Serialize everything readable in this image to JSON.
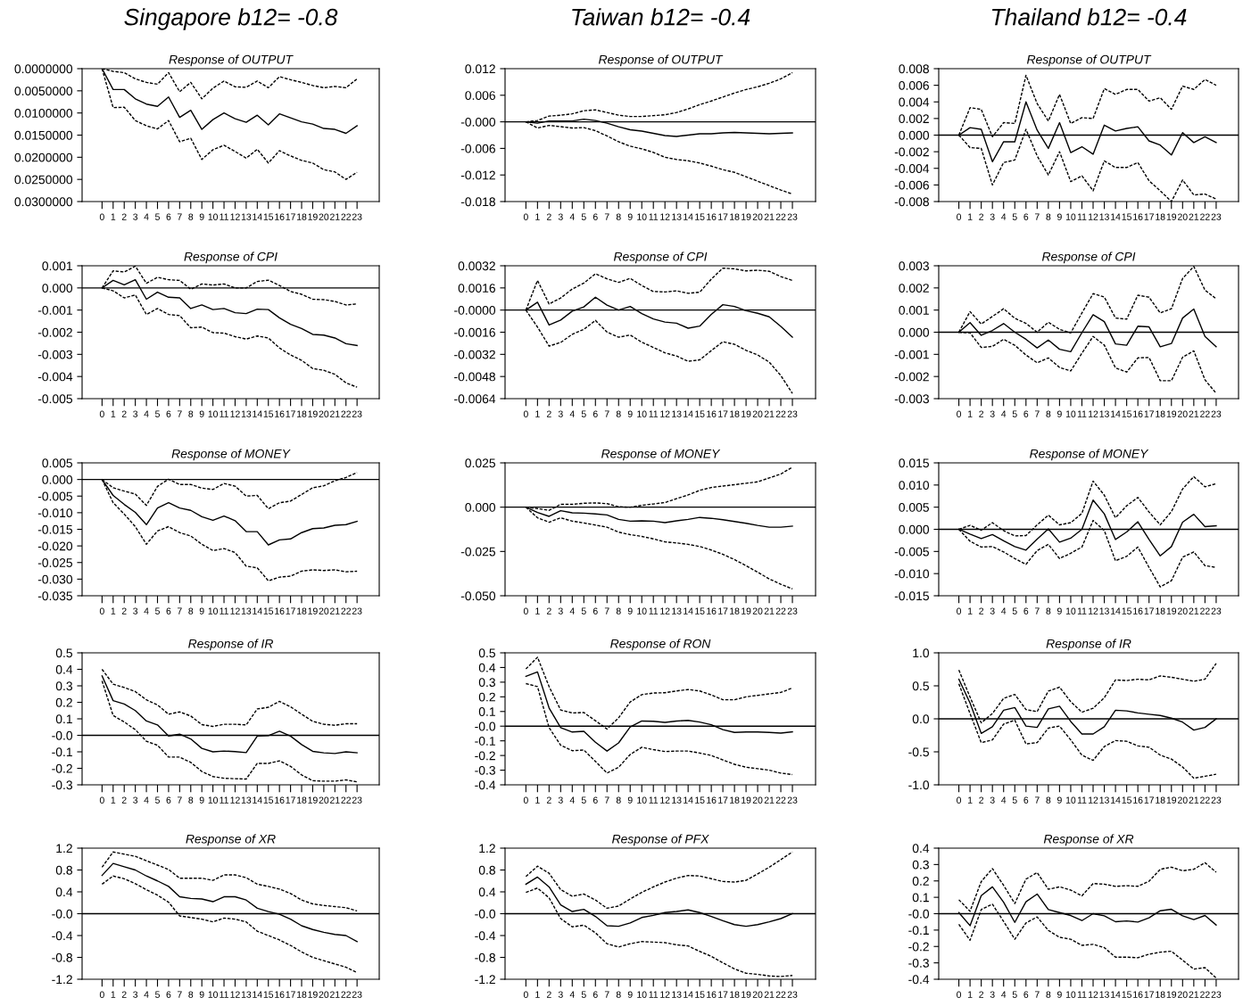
{
  "chart_data": [
    {
      "type": "line",
      "title": "Singapore b12= -0.8",
      "subtitle": "Response of OUTPUT",
      "categories": [
        "0",
        "1",
        "2",
        "3",
        "4",
        "5",
        "6",
        "7",
        "8",
        "9",
        "10",
        "11",
        "12",
        "13",
        "14",
        "15",
        "16",
        "17",
        "18",
        "19",
        "20",
        "21",
        "22",
        "23"
      ],
      "ylim": [
        0.03,
        0.0
      ],
      "yticks": [
        {
          "value": 0.0,
          "label": "0.0000000"
        },
        {
          "value": 0.005,
          "label": "0.0050000"
        },
        {
          "value": 0.01,
          "label": "0.0100000"
        },
        {
          "value": 0.015,
          "label": "0.0150000"
        },
        {
          "value": 0.02,
          "label": "0.0200000"
        },
        {
          "value": 0.025,
          "label": "0.0250000"
        },
        {
          "value": 0.03,
          "label": "0.0300000"
        }
      ],
      "series": [
        {
          "color": "#000000",
          "line_style": "solid",
          "values": [
            0,
            0.0047,
            0.0047,
            0.0068,
            0.008,
            0.0085,
            0.0064,
            0.011,
            0.0094,
            0.0137,
            0.0115,
            0.01,
            0.0113,
            0.0121,
            0.0105,
            0.0127,
            0.0102,
            0.0111,
            0.012,
            0.0125,
            0.0135,
            0.0137,
            0.0146,
            0.0129
          ]
        },
        {
          "color": "#000000",
          "line_style": "dashed",
          "values": [
            0,
            0.0006,
            0.0009,
            0.0023,
            0.0031,
            0.0035,
            0.0009,
            0.0052,
            0.0031,
            0.0068,
            0.0044,
            0.0028,
            0.0041,
            0.0042,
            0.0028,
            0.0043,
            0.0018,
            0.0025,
            0.0031,
            0.0038,
            0.0043,
            0.004,
            0.0043,
            0.0023
          ]
        },
        {
          "color": "#000000",
          "line_style": "dashed",
          "values": [
            0,
            0.0088,
            0.0087,
            0.0117,
            0.0129,
            0.0136,
            0.0117,
            0.0165,
            0.0157,
            0.0205,
            0.0183,
            0.0173,
            0.0187,
            0.0202,
            0.0182,
            0.0213,
            0.0185,
            0.0197,
            0.0207,
            0.0213,
            0.0228,
            0.0233,
            0.025,
            0.0234
          ]
        }
      ]
    },
    {
      "type": "line",
      "title": "Taiwan b12= -0.4",
      "subtitle": "Response of OUTPUT",
      "categories": [
        "0",
        "1",
        "2",
        "3",
        "4",
        "5",
        "6",
        "7",
        "8",
        "9",
        "10",
        "11",
        "12",
        "13",
        "14",
        "15",
        "16",
        "17",
        "18",
        "19",
        "20",
        "21",
        "22",
        "23"
      ],
      "ylim": [
        -0.018,
        0.012
      ],
      "yticks": [
        -0.018,
        -0.012,
        -0.006,
        {
          "value": 0.0,
          "label": "-0.000"
        },
        0.006,
        0.012
      ],
      "ref_lines": [
        {
          "axis": "y",
          "value": 0,
          "color": "#000000"
        }
      ],
      "series": [
        {
          "color": "#000000",
          "line_style": "solid",
          "values": [
            0,
            -0.0003,
            0.0002,
            0.0002,
            0.0002,
            0.0006,
            0.0003,
            -0.0003,
            -0.0011,
            -0.0018,
            -0.0021,
            -0.0026,
            -0.0031,
            -0.0033,
            -0.003,
            -0.0027,
            -0.0027,
            -0.0025,
            -0.0024,
            -0.0025,
            -0.0026,
            -0.0027,
            -0.0026,
            -0.0025
          ]
        },
        {
          "color": "#000000",
          "line_style": "dashed",
          "values": [
            0,
            0.0003,
            0.0013,
            0.0015,
            0.0018,
            0.0025,
            0.0027,
            0.0021,
            0.0015,
            0.0012,
            0.0012,
            0.0014,
            0.0016,
            0.0021,
            0.0029,
            0.0039,
            0.0047,
            0.0056,
            0.0065,
            0.0073,
            0.0079,
            0.0087,
            0.0097,
            0.0111
          ]
        },
        {
          "color": "#000000",
          "line_style": "dashed",
          "values": [
            0,
            -0.0014,
            -0.0008,
            -0.0011,
            -0.0014,
            -0.0013,
            -0.002,
            -0.0032,
            -0.0045,
            -0.0055,
            -0.0061,
            -0.0069,
            -0.008,
            -0.0085,
            -0.0088,
            -0.0093,
            -0.01,
            -0.0108,
            -0.0114,
            -0.0124,
            -0.0134,
            -0.0144,
            -0.0154,
            -0.0163
          ]
        }
      ]
    },
    {
      "type": "line",
      "title": "Thailand b12= -0.4",
      "subtitle": "Response of OUTPUT",
      "categories": [
        "0",
        "1",
        "2",
        "3",
        "4",
        "5",
        "6",
        "7",
        "8",
        "9",
        "10",
        "11",
        "12",
        "13",
        "14",
        "15",
        "16",
        "17",
        "18",
        "19",
        "20",
        "21",
        "22",
        "23"
      ],
      "ylim": [
        -0.008,
        0.008
      ],
      "yticks": [
        -0.008,
        -0.006,
        -0.004,
        -0.002,
        {
          "value": 0.0,
          "label": "0.000"
        },
        0.002,
        0.004,
        0.006,
        0.008
      ],
      "ref_lines": [
        {
          "axis": "y",
          "value": 0,
          "color": "#000000"
        }
      ],
      "series": [
        {
          "color": "#000000",
          "line_style": "solid",
          "values": [
            0,
            0.0009,
            0.0007,
            -0.0032,
            -0.0008,
            -0.0008,
            0.004,
            0.0006,
            -0.0016,
            0.0015,
            -0.0021,
            -0.0014,
            -0.0023,
            0.0012,
            0.0005,
            0.0008,
            0.001,
            -0.0007,
            -0.0012,
            -0.0024,
            0.0003,
            -0.0009,
            -0.0002,
            -0.0009
          ]
        },
        {
          "color": "#000000",
          "line_style": "dashed",
          "values": [
            0,
            0.0033,
            0.0031,
            -0.0002,
            0.0015,
            0.0014,
            0.0072,
            0.0038,
            0.0017,
            0.0049,
            0.0014,
            0.0021,
            0.002,
            0.0056,
            0.0049,
            0.0055,
            0.0055,
            0.0041,
            0.0045,
            0.0031,
            0.0059,
            0.0055,
            0.0067,
            0.006
          ]
        },
        {
          "color": "#000000",
          "line_style": "dashed",
          "values": [
            0,
            -0.0015,
            -0.0016,
            -0.006,
            -0.0033,
            -0.003,
            0.0007,
            -0.0025,
            -0.0048,
            -0.002,
            -0.0056,
            -0.0049,
            -0.0067,
            -0.0031,
            -0.0039,
            -0.0039,
            -0.0033,
            -0.0055,
            -0.0067,
            -0.008,
            -0.0054,
            -0.0072,
            -0.0071,
            -0.0077
          ]
        }
      ]
    },
    {
      "type": "line",
      "title": "Response of CPI",
      "categories": [
        "0",
        "1",
        "2",
        "3",
        "4",
        "5",
        "6",
        "7",
        "8",
        "9",
        "10",
        "11",
        "12",
        "13",
        "14",
        "15",
        "16",
        "17",
        "18",
        "19",
        "20",
        "21",
        "22",
        "23"
      ],
      "ylim": [
        -0.005,
        0.001
      ],
      "yticks": [
        -0.005,
        -0.004,
        -0.003,
        -0.002,
        -0.001,
        {
          "value": 0.0,
          "label": "0.000"
        },
        0.001
      ],
      "ref_lines": [
        {
          "axis": "y",
          "value": 0,
          "color": "#000000"
        }
      ],
      "series": [
        {
          "color": "#000000",
          "line_style": "solid",
          "values": [
            0,
            0.00034,
            0.00014,
            0.00037,
            -0.00051,
            -0.00019,
            -0.00042,
            -0.00045,
            -0.00093,
            -0.00077,
            -0.00098,
            -0.00093,
            -0.00112,
            -0.00116,
            -0.00096,
            -0.00098,
            -0.00135,
            -0.00164,
            -0.00183,
            -0.0021,
            -0.00213,
            -0.00226,
            -0.00252,
            -0.0026
          ]
        },
        {
          "color": "#000000",
          "line_style": "dashed",
          "values": [
            0,
            0.00077,
            0.00072,
            0.00098,
            0.00021,
            0.00048,
            0.00037,
            0.00034,
            -6e-05,
            0.00018,
            0.00013,
            0.00018,
            0,
            0,
            0.00029,
            0.00035,
            0.00011,
            -0.00016,
            -0.00029,
            -0.00051,
            -0.00053,
            -0.00061,
            -0.00077,
            -0.00072
          ]
        },
        {
          "color": "#000000",
          "line_style": "dashed",
          "values": [
            0,
            -0.00013,
            -0.00045,
            -0.00032,
            -0.0012,
            -0.00093,
            -0.0012,
            -0.00125,
            -0.0018,
            -0.00177,
            -0.00202,
            -0.00204,
            -0.0022,
            -0.00231,
            -0.00217,
            -0.00226,
            -0.00271,
            -0.00303,
            -0.00327,
            -0.00364,
            -0.00372,
            -0.0039,
            -0.00429,
            -0.00448
          ]
        }
      ]
    },
    {
      "type": "line",
      "title": "Response of CPI",
      "categories": [
        "0",
        "1",
        "2",
        "3",
        "4",
        "5",
        "6",
        "7",
        "8",
        "9",
        "10",
        "11",
        "12",
        "13",
        "14",
        "15",
        "16",
        "17",
        "18",
        "19",
        "20",
        "21",
        "22",
        "23"
      ],
      "ylim": [
        -0.0064,
        0.0032
      ],
      "yticks": [
        -0.0064,
        -0.0048,
        -0.0032,
        -0.0016,
        {
          "value": 0.0,
          "label": "-0.0000"
        },
        0.0016,
        0.0032
      ],
      "ref_lines": [
        {
          "axis": "y",
          "value": 0,
          "color": "#000000"
        }
      ],
      "series": [
        {
          "color": "#000000",
          "line_style": "solid",
          "values": [
            0,
            0.00057,
            -0.00108,
            -0.00072,
            -8e-05,
            0.00023,
            0.00093,
            0.00036,
            0,
            0.00026,
            -0.00026,
            -0.00064,
            -0.00087,
            -0.00095,
            -0.00131,
            -0.00116,
            -0.00031,
            0.00039,
            0.00026,
            -5e-05,
            -0.00023,
            -0.00049,
            -0.00118,
            -0.00196
          ]
        },
        {
          "color": "#000000",
          "line_style": "dashed",
          "values": [
            0,
            0.00214,
            0.00044,
            0.00087,
            0.00152,
            0.00195,
            0.00262,
            0.00226,
            0.002,
            0.00229,
            0.00177,
            0.00134,
            0.00131,
            0.00139,
            0.00121,
            0.00129,
            0.00224,
            0.00303,
            0.00298,
            0.00283,
            0.00288,
            0.0028,
            0.00242,
            0.00214
          ]
        },
        {
          "color": "#000000",
          "line_style": "dashed",
          "values": [
            0,
            -0.00123,
            -0.0026,
            -0.00234,
            -0.00175,
            -0.00139,
            -0.00075,
            -0.00159,
            -0.00196,
            -0.0018,
            -0.00232,
            -0.0027,
            -0.00309,
            -0.00332,
            -0.0037,
            -0.0036,
            -0.00293,
            -0.00229,
            -0.00247,
            -0.00291,
            -0.00324,
            -0.00376,
            -0.00473,
            -0.00602
          ]
        }
      ]
    },
    {
      "type": "line",
      "title": "Response of CPI",
      "categories": [
        "0",
        "1",
        "2",
        "3",
        "4",
        "5",
        "6",
        "7",
        "8",
        "9",
        "10",
        "11",
        "12",
        "13",
        "14",
        "15",
        "16",
        "17",
        "18",
        "19",
        "20",
        "21",
        "22",
        "23"
      ],
      "ylim": [
        -0.003,
        0.003
      ],
      "yticks": [
        -0.003,
        -0.002,
        -0.001,
        {
          "value": 0.0,
          "label": "0.000"
        },
        0.001,
        0.002,
        0.003
      ],
      "ref_lines": [
        {
          "axis": "y",
          "value": 0,
          "color": "#000000"
        }
      ],
      "series": [
        {
          "color": "#000000",
          "line_style": "solid",
          "values": [
            0,
            0.00043,
            -0.00014,
            8e-05,
            0.00039,
            0,
            -0.00032,
            -0.00071,
            -0.00035,
            -0.00077,
            -0.00088,
            -2e-05,
            0.00079,
            0.00048,
            -0.00053,
            -0.00059,
            0.00027,
            0.00024,
            -0.00066,
            -0.00051,
            0.00064,
            0.00105,
            -0.00019,
            -0.00066
          ]
        },
        {
          "color": "#000000",
          "line_style": "dashed",
          "values": [
            0,
            0.00093,
            0.00037,
            0.00071,
            0.00106,
            0.00063,
            0.0004,
            0,
            0.00045,
            0.00013,
            -3e-05,
            0.00087,
            0.00174,
            0.00159,
            0.00064,
            0.00059,
            0.00167,
            0.00158,
            0.00087,
            0.00106,
            0.00243,
            0.00297,
            0.0019,
            0.00151
          ]
        },
        {
          "color": "#000000",
          "line_style": "dashed",
          "values": [
            0,
            -3e-05,
            -0.00069,
            -0.00064,
            -0.00032,
            -0.00059,
            -0.00103,
            -0.00138,
            -0.00116,
            -0.00159,
            -0.00175,
            -0.00095,
            -0.00019,
            -0.00058,
            -0.00161,
            -0.0018,
            -0.00116,
            -0.00114,
            -0.00219,
            -0.00219,
            -0.00113,
            -0.00084,
            -0.00215,
            -0.00276
          ]
        }
      ]
    },
    {
      "type": "line",
      "title": "Response of MONEY",
      "categories": [
        "0",
        "1",
        "2",
        "3",
        "4",
        "5",
        "6",
        "7",
        "8",
        "9",
        "10",
        "11",
        "12",
        "13",
        "14",
        "15",
        "16",
        "17",
        "18",
        "19",
        "20",
        "21",
        "22",
        "23"
      ],
      "ylim": [
        -0.035,
        0.005
      ],
      "yticks": [
        -0.035,
        {
          "value": -0.03,
          "label": "-0.030"
        },
        -0.025,
        {
          "value": -0.02,
          "label": "-0.020"
        },
        -0.015,
        {
          "value": -0.01,
          "label": "-0.010"
        },
        -0.005,
        {
          "value": 0.0,
          "label": "0.000"
        },
        0.005
      ],
      "ref_lines": [
        {
          "axis": "y",
          "value": 0,
          "color": "#000000"
        }
      ],
      "series": [
        {
          "color": "#000000",
          "line_style": "solid",
          "values": [
            0,
            -0.0048,
            -0.0075,
            -0.0099,
            -0.0136,
            -0.0086,
            -0.007,
            -0.0086,
            -0.0093,
            -0.0112,
            -0.0123,
            -0.011,
            -0.0124,
            -0.0157,
            -0.0157,
            -0.0197,
            -0.0182,
            -0.0179,
            -0.016,
            -0.0148,
            -0.0146,
            -0.0138,
            -0.0136,
            -0.0126
          ]
        },
        {
          "color": "#000000",
          "line_style": "dashed",
          "values": [
            0,
            -0.0025,
            -0.0035,
            -0.0044,
            -0.0078,
            -0.0021,
            0.0001,
            -0.0015,
            -0.0015,
            -0.0026,
            -0.003,
            -0.0012,
            -0.002,
            -0.005,
            -0.0048,
            -0.0088,
            -0.007,
            -0.0065,
            -0.0045,
            -0.0025,
            -0.0019,
            -0.0004,
            0.0006,
            0.0021
          ]
        },
        {
          "color": "#000000",
          "line_style": "dashed",
          "values": [
            0,
            -0.007,
            -0.0104,
            -0.0142,
            -0.0195,
            -0.0155,
            -0.0142,
            -0.016,
            -0.017,
            -0.0195,
            -0.0214,
            -0.0208,
            -0.022,
            -0.0261,
            -0.0266,
            -0.0305,
            -0.0294,
            -0.0291,
            -0.0276,
            -0.0272,
            -0.0274,
            -0.0272,
            -0.0278,
            -0.0276
          ]
        }
      ]
    },
    {
      "type": "line",
      "title": "Response of MONEY",
      "categories": [
        "0",
        "1",
        "2",
        "3",
        "4",
        "5",
        "6",
        "7",
        "8",
        "9",
        "10",
        "11",
        "12",
        "13",
        "14",
        "15",
        "16",
        "17",
        "18",
        "19",
        "20",
        "21",
        "22",
        "23"
      ],
      "ylim": [
        -0.05,
        0.025
      ],
      "yticks": [
        {
          "value": -0.05,
          "label": "-0.050"
        },
        -0.025,
        {
          "value": 0.0,
          "label": "0.000"
        },
        0.025
      ],
      "ref_lines": [
        {
          "axis": "y",
          "value": 0,
          "color": "#000000"
        }
      ],
      "series": [
        {
          "color": "#000000",
          "line_style": "solid",
          "values": [
            0,
            -0.003,
            -0.0052,
            -0.002,
            -0.0032,
            -0.0034,
            -0.0038,
            -0.0044,
            -0.0069,
            -0.0079,
            -0.0077,
            -0.0079,
            -0.0087,
            -0.0077,
            -0.0069,
            -0.0058,
            -0.0063,
            -0.0071,
            -0.0081,
            -0.0091,
            -0.0103,
            -0.0113,
            -0.0113,
            -0.0107
          ]
        },
        {
          "color": "#000000",
          "line_style": "dashed",
          "values": [
            0,
            -0.0008,
            -0.0018,
            0.0016,
            0.0016,
            0.0022,
            0.0024,
            0.002,
            0.0002,
            0,
            0.001,
            0.0018,
            0.0026,
            0.0048,
            0.0069,
            0.0095,
            0.0111,
            0.0119,
            0.0127,
            0.0135,
            0.0143,
            0.0165,
            0.0187,
            0.0226
          ]
        },
        {
          "color": "#000000",
          "line_style": "dashed",
          "values": [
            0,
            -0.006,
            -0.0085,
            -0.006,
            -0.0079,
            -0.0089,
            -0.0101,
            -0.0113,
            -0.0141,
            -0.0155,
            -0.0165,
            -0.0179,
            -0.0196,
            -0.0202,
            -0.021,
            -0.0222,
            -0.0242,
            -0.0266,
            -0.0296,
            -0.033,
            -0.0367,
            -0.0405,
            -0.0435,
            -0.0461
          ]
        }
      ]
    },
    {
      "type": "line",
      "title": "Response of MONEY",
      "categories": [
        "0",
        "1",
        "2",
        "3",
        "4",
        "5",
        "6",
        "7",
        "8",
        "9",
        "10",
        "11",
        "12",
        "13",
        "14",
        "15",
        "16",
        "17",
        "18",
        "19",
        "20",
        "21",
        "22",
        "23"
      ],
      "ylim": [
        -0.015,
        0.015
      ],
      "yticks": [
        -0.015,
        {
          "value": -0.01,
          "label": "-0.010"
        },
        -0.005,
        {
          "value": 0.0,
          "label": "0.000"
        },
        0.005,
        {
          "value": 0.01,
          "label": "0.010"
        },
        0.015
      ],
      "ref_lines": [
        {
          "axis": "y",
          "value": 0,
          "color": "#000000"
        }
      ],
      "series": [
        {
          "color": "#000000",
          "line_style": "solid",
          "values": [
            0,
            -0.0011,
            -0.0021,
            -0.0012,
            -0.0026,
            -0.0039,
            -0.0047,
            -0.0022,
            0.0001,
            -0.0029,
            -0.002,
            0,
            0.0066,
            0.0035,
            -0.0023,
            -0.0006,
            0.0017,
            -0.0023,
            -0.006,
            -0.0039,
            0.0016,
            0.0034,
            0.0006,
            0.0008
          ]
        },
        {
          "color": "#000000",
          "line_style": "dashed",
          "values": [
            0,
            0.0009,
            -0.0002,
            0.0015,
            -0.0003,
            -0.0015,
            -0.0014,
            0.001,
            0.0032,
            0.001,
            0.0015,
            0.0036,
            0.0109,
            0.0077,
            0.0026,
            0.0053,
            0.0072,
            0.0039,
            0.001,
            0.004,
            0.0091,
            0.0119,
            0.0096,
            0.0103
          ]
        },
        {
          "color": "#000000",
          "line_style": "dashed",
          "values": [
            0,
            -0.0027,
            -0.004,
            -0.0039,
            -0.0051,
            -0.0066,
            -0.0079,
            -0.0048,
            -0.0034,
            -0.0066,
            -0.0054,
            -0.004,
            0.002,
            -0.0003,
            -0.0071,
            -0.0061,
            -0.004,
            -0.0086,
            -0.013,
            -0.0116,
            -0.0063,
            -0.0051,
            -0.0082,
            -0.0086
          ]
        }
      ]
    },
    {
      "type": "line",
      "title": "Response of IR",
      "categories": [
        "0",
        "1",
        "2",
        "3",
        "4",
        "5",
        "6",
        "7",
        "8",
        "9",
        "10",
        "11",
        "12",
        "13",
        "14",
        "15",
        "16",
        "17",
        "18",
        "19",
        "20",
        "21",
        "22",
        "23"
      ],
      "ylim": [
        -0.3,
        0.5
      ],
      "yticks": [
        -0.3,
        -0.2,
        -0.1,
        {
          "value": 0.0,
          "label": "-0.0"
        },
        0.1,
        0.2,
        0.3,
        0.4,
        0.5
      ],
      "ref_lines": [
        {
          "axis": "y",
          "value": 0,
          "color": "#000000"
        }
      ],
      "series": [
        {
          "color": "#000000",
          "line_style": "solid",
          "values": [
            0.36,
            0.21,
            0.19,
            0.15,
            0.087,
            0.063,
            -0.004,
            0.007,
            -0.022,
            -0.079,
            -0.1,
            -0.095,
            -0.099,
            -0.105,
            -0.005,
            -0.002,
            0.025,
            -0.005,
            -0.056,
            -0.097,
            -0.106,
            -0.11,
            -0.1,
            -0.106
          ]
        },
        {
          "color": "#000000",
          "line_style": "dashed",
          "values": [
            0.4,
            0.31,
            0.29,
            0.265,
            0.215,
            0.184,
            0.128,
            0.142,
            0.117,
            0.065,
            0.054,
            0.067,
            0.067,
            0.063,
            0.16,
            0.17,
            0.206,
            0.173,
            0.128,
            0.085,
            0.067,
            0.061,
            0.07,
            0.07
          ]
        },
        {
          "color": "#000000",
          "line_style": "dashed",
          "values": [
            0.33,
            0.12,
            0.081,
            0.034,
            -0.036,
            -0.06,
            -0.132,
            -0.132,
            -0.164,
            -0.219,
            -0.25,
            -0.26,
            -0.263,
            -0.265,
            -0.17,
            -0.17,
            -0.155,
            -0.188,
            -0.24,
            -0.275,
            -0.278,
            -0.278,
            -0.27,
            -0.282
          ]
        }
      ]
    },
    {
      "type": "line",
      "title": "Response of RON",
      "categories": [
        "0",
        "1",
        "2",
        "3",
        "4",
        "5",
        "6",
        "7",
        "8",
        "9",
        "10",
        "11",
        "12",
        "13",
        "14",
        "15",
        "16",
        "17",
        "18",
        "19",
        "20",
        "21",
        "22",
        "23"
      ],
      "ylim": [
        -0.4,
        0.5
      ],
      "yticks": [
        -0.4,
        -0.3,
        -0.2,
        -0.1,
        {
          "value": 0.0,
          "label": "-0.0"
        },
        0.1,
        0.2,
        0.3,
        0.4,
        0.5
      ],
      "ref_lines": [
        {
          "axis": "y",
          "value": 0,
          "color": "#000000"
        }
      ],
      "series": [
        {
          "color": "#000000",
          "line_style": "solid",
          "values": [
            0.34,
            0.37,
            0.124,
            -0.01,
            -0.04,
            -0.035,
            -0.11,
            -0.17,
            -0.114,
            -0.006,
            0.035,
            0.033,
            0.026,
            0.035,
            0.039,
            0.028,
            0.01,
            -0.024,
            -0.043,
            -0.04,
            -0.04,
            -0.043,
            -0.047,
            -0.039
          ]
        },
        {
          "color": "#000000",
          "line_style": "dashed",
          "values": [
            0.39,
            0.47,
            0.27,
            0.11,
            0.09,
            0.093,
            0.037,
            -0.02,
            0.057,
            0.165,
            0.215,
            0.226,
            0.228,
            0.24,
            0.25,
            0.24,
            0.213,
            0.18,
            0.18,
            0.2,
            0.21,
            0.22,
            0.23,
            0.26
          ]
        },
        {
          "color": "#000000",
          "line_style": "dashed",
          "values": [
            0.29,
            0.27,
            -0.01,
            -0.13,
            -0.167,
            -0.163,
            -0.24,
            -0.32,
            -0.28,
            -0.193,
            -0.144,
            -0.16,
            -0.173,
            -0.17,
            -0.17,
            -0.183,
            -0.2,
            -0.23,
            -0.26,
            -0.28,
            -0.29,
            -0.3,
            -0.32,
            -0.33
          ]
        }
      ]
    },
    {
      "type": "line",
      "title": "Response of IR",
      "categories": [
        "0",
        "1",
        "2",
        "3",
        "4",
        "5",
        "6",
        "7",
        "8",
        "9",
        "10",
        "11",
        "12",
        "13",
        "14",
        "15",
        "16",
        "17",
        "18",
        "19",
        "20",
        "21",
        "22",
        "23"
      ],
      "ylim": [
        -1.0,
        1.0
      ],
      "yticks": [
        {
          "value": -1.0,
          "label": "-1.0"
        },
        -0.5,
        {
          "value": 0.0,
          "label": "0.0"
        },
        0.5,
        {
          "value": 1.0,
          "label": "1.0"
        }
      ],
      "ref_lines": [
        {
          "axis": "y",
          "value": 0,
          "color": "#000000"
        }
      ],
      "series": [
        {
          "color": "#000000",
          "line_style": "solid",
          "values": [
            0.6,
            0.24,
            -0.22,
            -0.12,
            0.13,
            0.17,
            -0.11,
            -0.13,
            0.15,
            0.19,
            -0.04,
            -0.23,
            -0.23,
            -0.12,
            0.13,
            0.12,
            0.09,
            0.07,
            0.05,
            0.01,
            -0.05,
            -0.17,
            -0.13,
            0
          ]
        },
        {
          "color": "#000000",
          "line_style": "dashed",
          "values": [
            0.74,
            0.33,
            -0.06,
            0.08,
            0.31,
            0.37,
            0.14,
            0.11,
            0.42,
            0.48,
            0.26,
            0.1,
            0.16,
            0.32,
            0.59,
            0.58,
            0.6,
            0.59,
            0.65,
            0.63,
            0.6,
            0.57,
            0.6,
            0.84
          ]
        },
        {
          "color": "#000000",
          "line_style": "dashed",
          "values": [
            0.53,
            0.08,
            -0.36,
            -0.32,
            -0.08,
            -0.02,
            -0.38,
            -0.36,
            -0.14,
            -0.11,
            -0.32,
            -0.55,
            -0.63,
            -0.42,
            -0.33,
            -0.34,
            -0.41,
            -0.43,
            -0.55,
            -0.61,
            -0.73,
            -0.9,
            -0.87,
            -0.84
          ]
        }
      ]
    },
    {
      "type": "line",
      "title": "Response of XR",
      "categories": [
        "0",
        "1",
        "2",
        "3",
        "4",
        "5",
        "6",
        "7",
        "8",
        "9",
        "10",
        "11",
        "12",
        "13",
        "14",
        "15",
        "16",
        "17",
        "18",
        "19",
        "20",
        "21",
        "22",
        "23"
      ],
      "ylim": [
        -1.2,
        1.2
      ],
      "yticks": [
        -1.2,
        -0.8,
        -0.4,
        {
          "value": 0.0,
          "label": "-0.0"
        },
        0.4,
        0.8,
        1.2
      ],
      "ref_lines": [
        {
          "axis": "y",
          "value": 0,
          "color": "#000000"
        }
      ],
      "series": [
        {
          "color": "#000000",
          "line_style": "solid",
          "values": [
            0.7,
            0.92,
            0.86,
            0.8,
            0.69,
            0.6,
            0.5,
            0.31,
            0.28,
            0.27,
            0.22,
            0.31,
            0.31,
            0.25,
            0.1,
            0.04,
            -0.01,
            -0.1,
            -0.22,
            -0.29,
            -0.34,
            -0.38,
            -0.4,
            -0.51
          ]
        },
        {
          "color": "#000000",
          "line_style": "dashed",
          "values": [
            0.85,
            1.13,
            1.09,
            1.05,
            0.97,
            0.89,
            0.81,
            0.65,
            0.65,
            0.65,
            0.61,
            0.71,
            0.71,
            0.66,
            0.54,
            0.5,
            0.45,
            0.37,
            0.25,
            0.18,
            0.15,
            0.13,
            0.11,
            0.05
          ]
        },
        {
          "color": "#000000",
          "line_style": "dashed",
          "values": [
            0.54,
            0.69,
            0.64,
            0.55,
            0.44,
            0.34,
            0.21,
            -0.04,
            -0.07,
            -0.1,
            -0.15,
            -0.08,
            -0.1,
            -0.15,
            -0.32,
            -0.4,
            -0.48,
            -0.58,
            -0.7,
            -0.8,
            -0.86,
            -0.92,
            -0.98,
            -1.08
          ]
        }
      ]
    },
    {
      "type": "line",
      "title": "Response of PFX",
      "categories": [
        "0",
        "1",
        "2",
        "3",
        "4",
        "5",
        "6",
        "7",
        "8",
        "9",
        "10",
        "11",
        "12",
        "13",
        "14",
        "15",
        "16",
        "17",
        "18",
        "19",
        "20",
        "21",
        "22",
        "23"
      ],
      "ylim": [
        -1.2,
        1.2
      ],
      "yticks": [
        -1.2,
        -0.8,
        -0.4,
        {
          "value": 0.0,
          "label": "-0.0"
        },
        0.4,
        0.8,
        1.2
      ],
      "ref_lines": [
        {
          "axis": "y",
          "value": 0,
          "color": "#000000"
        }
      ],
      "series": [
        {
          "color": "#000000",
          "line_style": "solid",
          "values": [
            0.54,
            0.67,
            0.49,
            0.16,
            0.04,
            0.08,
            -0.05,
            -0.22,
            -0.23,
            -0.17,
            -0.07,
            -0.03,
            0.02,
            0.04,
            0.07,
            0.02,
            -0.05,
            -0.13,
            -0.2,
            -0.23,
            -0.2,
            -0.15,
            -0.09,
            0
          ]
        },
        {
          "color": "#000000",
          "line_style": "dashed",
          "values": [
            0.68,
            0.87,
            0.74,
            0.44,
            0.32,
            0.36,
            0.25,
            0.1,
            0.14,
            0.27,
            0.39,
            0.49,
            0.58,
            0.65,
            0.7,
            0.69,
            0.64,
            0.59,
            0.58,
            0.61,
            0.73,
            0.85,
            0.99,
            1.13
          ]
        },
        {
          "color": "#000000",
          "line_style": "dashed",
          "values": [
            0.39,
            0.47,
            0.29,
            -0.09,
            -0.24,
            -0.21,
            -0.35,
            -0.55,
            -0.61,
            -0.55,
            -0.51,
            -0.52,
            -0.53,
            -0.57,
            -0.59,
            -0.69,
            -0.78,
            -0.9,
            -1.01,
            -1.09,
            -1.11,
            -1.14,
            -1.15,
            -1.13
          ]
        }
      ]
    },
    {
      "type": "line",
      "title": "Response of XR",
      "categories": [
        "0",
        "1",
        "2",
        "3",
        "4",
        "5",
        "6",
        "7",
        "8",
        "9",
        "10",
        "11",
        "12",
        "13",
        "14",
        "15",
        "16",
        "17",
        "18",
        "19",
        "20",
        "21",
        "22",
        "23"
      ],
      "ylim": [
        -0.4,
        0.4
      ],
      "yticks": [
        -0.4,
        -0.3,
        -0.2,
        -0.1,
        {
          "value": 0.0,
          "label": "-0.0"
        },
        0.1,
        0.2,
        0.3,
        0.4
      ],
      "ref_lines": [
        {
          "axis": "y",
          "value": 0,
          "color": "#000000"
        }
      ],
      "series": [
        {
          "color": "#000000",
          "line_style": "solid",
          "values": [
            0.007,
            -0.073,
            0.11,
            0.164,
            0.07,
            -0.053,
            0.073,
            0.12,
            0.025,
            0.007,
            -0.011,
            -0.042,
            0,
            -0.013,
            -0.049,
            -0.044,
            -0.051,
            -0.025,
            0.018,
            0.027,
            -0.013,
            -0.036,
            -0.011,
            -0.069
          ]
        },
        {
          "color": "#000000",
          "line_style": "dashed",
          "values": [
            0.085,
            0.015,
            0.196,
            0.275,
            0.173,
            0.062,
            0.211,
            0.251,
            0.149,
            0.164,
            0.144,
            0.109,
            0.184,
            0.18,
            0.167,
            0.171,
            0.167,
            0.198,
            0.271,
            0.284,
            0.262,
            0.271,
            0.311,
            0.253
          ]
        },
        {
          "color": "#000000",
          "line_style": "dashed",
          "values": [
            -0.065,
            -0.162,
            0.025,
            0.058,
            -0.047,
            -0.156,
            -0.056,
            -0.02,
            -0.102,
            -0.144,
            -0.156,
            -0.193,
            -0.187,
            -0.207,
            -0.265,
            -0.265,
            -0.269,
            -0.247,
            -0.235,
            -0.229,
            -0.284,
            -0.338,
            -0.329,
            -0.393
          ]
        }
      ]
    }
  ]
}
